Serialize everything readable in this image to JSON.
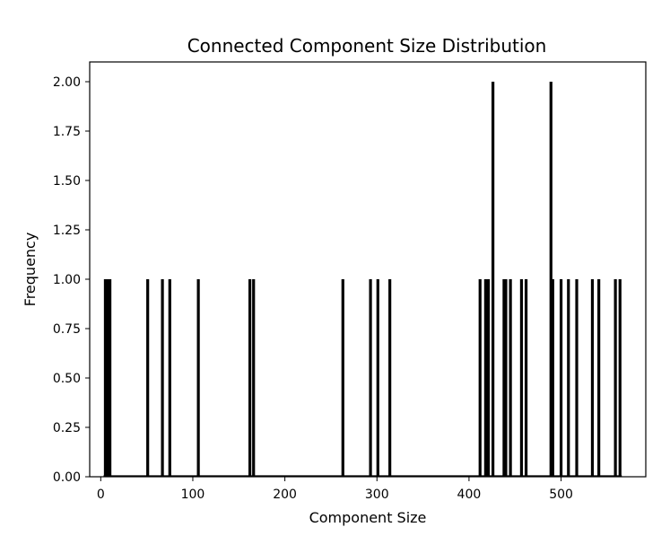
{
  "chart_data": {
    "type": "bar",
    "title": "Connected Component Size Distribution",
    "xlabel": "Component Size",
    "ylabel": "Frequency",
    "xlim": [
      -12,
      592
    ],
    "ylim": [
      0,
      2.1
    ],
    "xticks": [
      0,
      100,
      200,
      300,
      400,
      500
    ],
    "xtick_labels": [
      "0",
      "100",
      "200",
      "300",
      "400",
      "500"
    ],
    "yticks": [
      0,
      0.25,
      0.5,
      0.75,
      1.0,
      1.25,
      1.5,
      1.75,
      2.0
    ],
    "ytick_labels": [
      "0.00",
      "0.25",
      "0.50",
      "0.75",
      "1.00",
      "1.25",
      "1.50",
      "1.75",
      "2.00"
    ],
    "grid": false,
    "bar_color": "#000000",
    "bars": [
      {
        "x": 5,
        "y": 1
      },
      {
        "x": 7,
        "y": 1
      },
      {
        "x": 8,
        "y": 1
      },
      {
        "x": 10,
        "y": 1
      },
      {
        "x": 51,
        "y": 1
      },
      {
        "x": 67,
        "y": 1
      },
      {
        "x": 75,
        "y": 1
      },
      {
        "x": 106,
        "y": 1
      },
      {
        "x": 162,
        "y": 1
      },
      {
        "x": 166,
        "y": 1
      },
      {
        "x": 263,
        "y": 1
      },
      {
        "x": 293,
        "y": 1
      },
      {
        "x": 301,
        "y": 1
      },
      {
        "x": 314,
        "y": 1
      },
      {
        "x": 412,
        "y": 1
      },
      {
        "x": 418,
        "y": 1
      },
      {
        "x": 421,
        "y": 1
      },
      {
        "x": 426,
        "y": 2
      },
      {
        "x": 438,
        "y": 1
      },
      {
        "x": 440,
        "y": 1
      },
      {
        "x": 445,
        "y": 1
      },
      {
        "x": 457,
        "y": 1
      },
      {
        "x": 462,
        "y": 1
      },
      {
        "x": 489,
        "y": 2
      },
      {
        "x": 491,
        "y": 1
      },
      {
        "x": 500,
        "y": 1
      },
      {
        "x": 508,
        "y": 1
      },
      {
        "x": 517,
        "y": 1
      },
      {
        "x": 534,
        "y": 1
      },
      {
        "x": 541,
        "y": 1
      },
      {
        "x": 559,
        "y": 1
      },
      {
        "x": 564,
        "y": 1
      }
    ]
  }
}
